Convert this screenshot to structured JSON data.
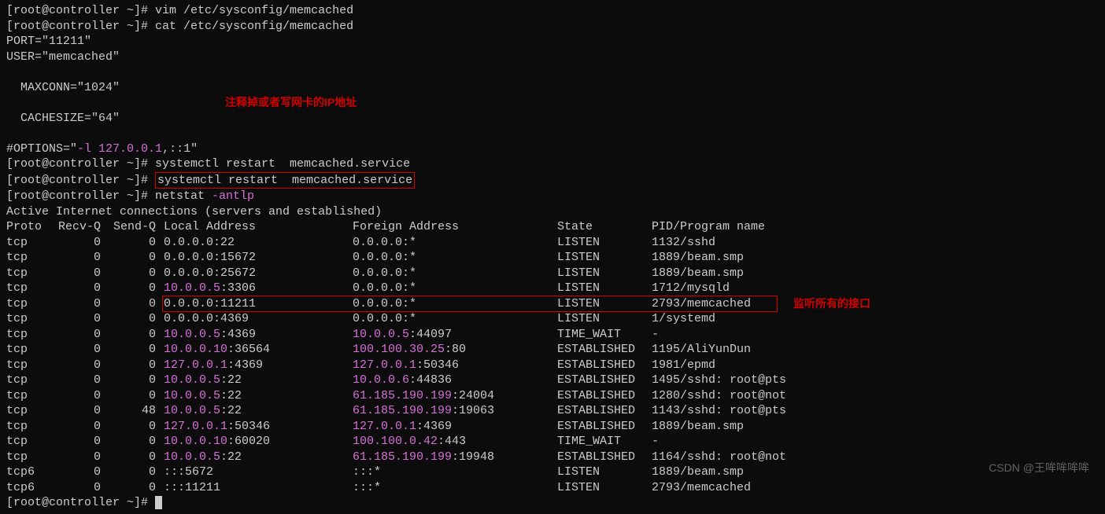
{
  "prompts": {
    "p1": "[root@controller ~]# vim /etc/sysconfig/memcached",
    "p2": "[root@controller ~]# cat /etc/sysconfig/memcached",
    "p3": "[root@controller ~]# systemctl restart  memcached.service",
    "p4pre": "[root@controller ~]# ",
    "p4cmd": "systemctl restart  memcached.service",
    "p5pre": "[root@controller ~]# netstat ",
    "p5opt": "-antlp",
    "p6": "[root@controller ~]# "
  },
  "config": {
    "l1": "PORT=\"11211\"",
    "l2": "USER=\"memcached\"",
    "l3": "MAXCONN=\"1024\"",
    "l4": "CACHESIZE=\"64\"",
    "l5a": "#OPTIONS=\"",
    "l5b": "-l",
    "l5c": " ",
    "l5d": "127.0.0.1",
    "l5e": ",::1\""
  },
  "annot1": "注释掉或者写网卡的IP地址",
  "annot2": "监听所有的接口",
  "netstat": {
    "title": "Active Internet connections (servers and established)",
    "hdr": {
      "c1": "Proto",
      "c2": "Recv-Q",
      "c3": "Send-Q",
      "c4": "Local Address",
      "c5": "Foreign Address",
      "c6": "State",
      "c7": "PID/Program name"
    },
    "rows": [
      {
        "proto": "tcp",
        "recv": "0",
        "send": "0",
        "la": "0.0.0.0:22",
        "laip": "",
        "fa": "0.0.0.0:*",
        "faip": "",
        "st": "LISTEN",
        "pid": "1132/sshd"
      },
      {
        "proto": "tcp",
        "recv": "0",
        "send": "0",
        "la": "0.0.0.0:15672",
        "laip": "",
        "fa": "0.0.0.0:*",
        "faip": "",
        "st": "LISTEN",
        "pid": "1889/beam.smp"
      },
      {
        "proto": "tcp",
        "recv": "0",
        "send": "0",
        "la": "0.0.0.0:25672",
        "laip": "",
        "fa": "0.0.0.0:*",
        "faip": "",
        "st": "LISTEN",
        "pid": "1889/beam.smp"
      },
      {
        "proto": "tcp",
        "recv": "0",
        "send": "0",
        "laip": "10.0.0.5",
        "la": ":3306",
        "fa": "0.0.0.0:*",
        "faip": "",
        "st": "LISTEN",
        "pid": "1712/mysqld"
      },
      {
        "proto": "tcp",
        "recv": "0",
        "send": "0",
        "la": "0.0.0.0:11211",
        "laip": "",
        "fa": "0.0.0.0:*",
        "faip": "",
        "st": "LISTEN",
        "pid": "2793/memcached",
        "hl": true
      },
      {
        "proto": "tcp",
        "recv": "0",
        "send": "0",
        "la": "0.0.0.0:4369",
        "laip": "",
        "fa": "0.0.0.0:*",
        "faip": "",
        "st": "LISTEN",
        "pid": "1/systemd"
      },
      {
        "proto": "tcp",
        "recv": "0",
        "send": "0",
        "laip": "10.0.0.5",
        "la": ":4369",
        "faip": "10.0.0.5",
        "fa": ":44097",
        "st": "TIME_WAIT",
        "pid": "-"
      },
      {
        "proto": "tcp",
        "recv": "0",
        "send": "0",
        "laip": "10.0.0.10",
        "la": ":36564",
        "faip": "100.100.30.25",
        "fa": ":80",
        "st": "ESTABLISHED",
        "pid": "1195/AliYunDun"
      },
      {
        "proto": "tcp",
        "recv": "0",
        "send": "0",
        "laip": "127.0.0.1",
        "la": ":4369",
        "faip": "127.0.0.1",
        "fa": ":50346",
        "st": "ESTABLISHED",
        "pid": "1981/epmd"
      },
      {
        "proto": "tcp",
        "recv": "0",
        "send": "0",
        "laip": "10.0.0.5",
        "la": ":22",
        "faip": "10.0.0.6",
        "fa": ":44836",
        "st": "ESTABLISHED",
        "pid": "1495/sshd: root@pts"
      },
      {
        "proto": "tcp",
        "recv": "0",
        "send": "0",
        "laip": "10.0.0.5",
        "la": ":22",
        "faip": "61.185.190.199",
        "fa": ":24004",
        "st": "ESTABLISHED",
        "pid": "1280/sshd: root@not"
      },
      {
        "proto": "tcp",
        "recv": "0",
        "send": "48",
        "laip": "10.0.0.5",
        "la": ":22",
        "faip": "61.185.190.199",
        "fa": ":19063",
        "st": "ESTABLISHED",
        "pid": "1143/sshd: root@pts"
      },
      {
        "proto": "tcp",
        "recv": "0",
        "send": "0",
        "laip": "127.0.0.1",
        "la": ":50346",
        "faip": "127.0.0.1",
        "fa": ":4369",
        "st": "ESTABLISHED",
        "pid": "1889/beam.smp"
      },
      {
        "proto": "tcp",
        "recv": "0",
        "send": "0",
        "laip": "10.0.0.10",
        "la": ":60020",
        "faip": "100.100.0.42",
        "fa": ":443",
        "st": "TIME_WAIT",
        "pid": "-"
      },
      {
        "proto": "tcp",
        "recv": "0",
        "send": "0",
        "laip": "10.0.0.5",
        "la": ":22",
        "faip": "61.185.190.199",
        "fa": ":19948",
        "st": "ESTABLISHED",
        "pid": "1164/sshd: root@not"
      },
      {
        "proto": "tcp6",
        "recv": "0",
        "send": "0",
        "la": ":::5672",
        "laip": "",
        "fa": ":::*",
        "faip": "",
        "st": "LISTEN",
        "pid": "1889/beam.smp"
      },
      {
        "proto": "tcp6",
        "recv": "0",
        "send": "0",
        "la": ":::11211",
        "laip": "",
        "fa": ":::*",
        "faip": "",
        "st": "LISTEN",
        "pid": "2793/memcached"
      }
    ]
  },
  "watermark": "CSDN @王哞哞哞哞"
}
